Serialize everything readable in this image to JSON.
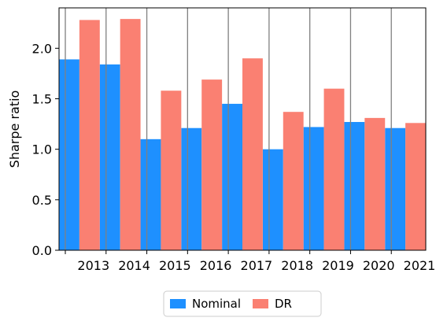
{
  "chart_data": {
    "type": "bar",
    "categories": [
      "2013",
      "2014",
      "2015",
      "2016",
      "2017",
      "2018",
      "2019",
      "2020",
      "2021"
    ],
    "series": [
      {
        "name": "Nominal",
        "color": "#1e90ff",
        "values": [
          1.89,
          1.84,
          1.1,
          1.21,
          1.45,
          1.0,
          1.22,
          1.27,
          1.21
        ]
      },
      {
        "name": "DR",
        "color": "#fa8072",
        "values": [
          2.28,
          2.29,
          1.58,
          1.69,
          1.9,
          1.37,
          1.6,
          1.31,
          1.26
        ]
      }
    ],
    "xlabel": "",
    "ylabel": "Sharpe ratio",
    "ylim": [
      0,
      2.4
    ],
    "yticks": [
      0.0,
      0.5,
      1.0,
      1.5,
      2.0
    ],
    "ytick_labels": [
      "0.0",
      "0.5",
      "1.0",
      "1.5",
      "2.0"
    ],
    "grid": "vertical",
    "grid_color": "#808080",
    "legend_position": "bottom-center",
    "legend_columns": 2
  }
}
